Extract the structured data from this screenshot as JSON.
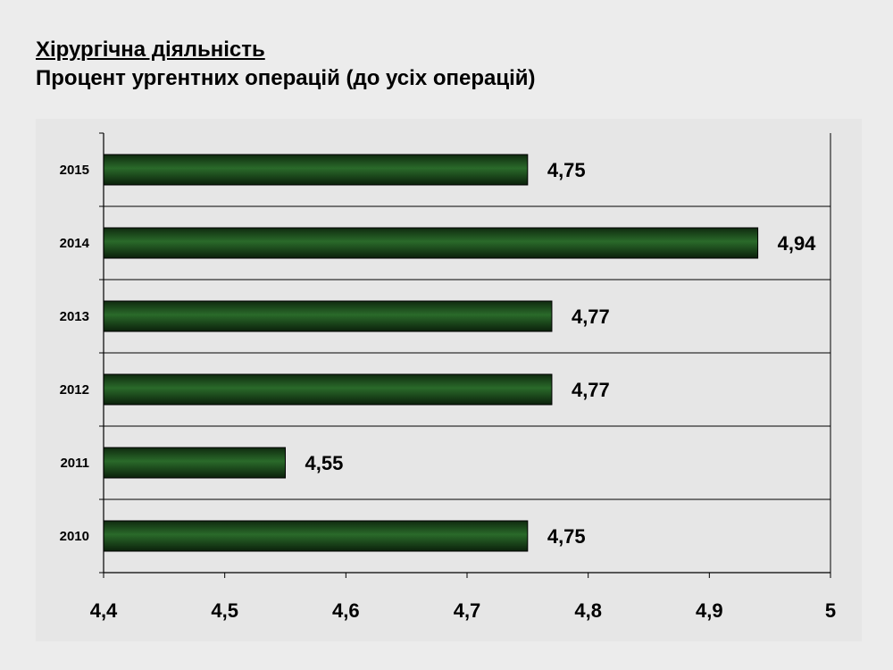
{
  "title": "Хірургічна діяльність",
  "subtitle": "Процент ургентних операцій (до усіх операцій)",
  "chart_data": {
    "type": "bar",
    "orientation": "horizontal",
    "categories": [
      "2015",
      "2014",
      "2013",
      "2012",
      "2011",
      "2010"
    ],
    "values": [
      4.75,
      4.94,
      4.77,
      4.77,
      4.55,
      4.75
    ],
    "value_labels": [
      "4,75",
      "4,94",
      "4,77",
      "4,77",
      "4,55",
      "4,75"
    ],
    "xlim": [
      4.4,
      5
    ],
    "xticks": [
      4.4,
      4.5,
      4.6,
      4.7,
      4.8,
      4.9,
      5
    ],
    "xtick_labels": [
      "4,4",
      "4,5",
      "4,6",
      "4,7",
      "4,8",
      "4,9",
      "5"
    ],
    "xlabel": "",
    "ylabel": "",
    "grid": "horizontal",
    "legend": "none",
    "bar_color": "#1d4d1d"
  }
}
